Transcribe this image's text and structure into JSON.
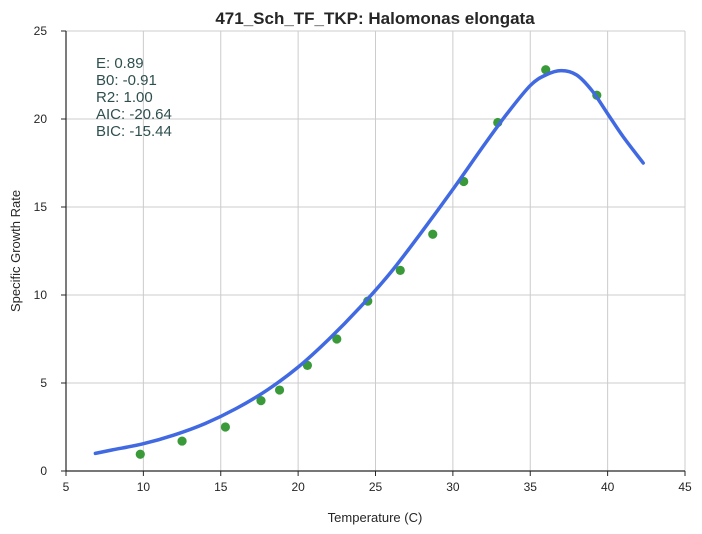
{
  "chart_data": {
    "type": "scatter",
    "title": "471_Sch_TF_TKP: Halomonas elongata",
    "xlabel": "Temperature (C)",
    "ylabel": "Specific Growth Rate",
    "xlim": [
      5,
      45
    ],
    "ylim": [
      0,
      25
    ],
    "xticks": [
      "5",
      "10",
      "15",
      "20",
      "25",
      "30",
      "35",
      "40",
      "45"
    ],
    "yticks": [
      "0",
      "5",
      "10",
      "15",
      "20",
      "25"
    ],
    "grid": true,
    "stats": [
      "E:  0.89",
      "B0:  -0.91",
      "R2:  1.00",
      "AIC: -20.64",
      "BIC: -15.44"
    ],
    "series": [
      {
        "kind": "points",
        "color": "#3a9a3a",
        "x": [
          9.8,
          12.5,
          15.3,
          17.6,
          18.8,
          20.6,
          22.5,
          24.5,
          26.6,
          28.7,
          30.7,
          32.9,
          36.0,
          39.3
        ],
        "y": [
          0.95,
          1.7,
          2.5,
          4.0,
          4.6,
          6.0,
          7.5,
          9.65,
          11.4,
          13.45,
          16.45,
          19.8,
          22.8,
          21.35
        ]
      },
      {
        "kind": "fitted-curve",
        "color": "#4169e1",
        "x": [
          6.9,
          8,
          10,
          12,
          14,
          16,
          18,
          20,
          22,
          24,
          26,
          28,
          30,
          32,
          33.5,
          35,
          36,
          37,
          38,
          39,
          40,
          41,
          42.3
        ],
        "y": [
          1.0,
          1.2,
          1.55,
          2.05,
          2.7,
          3.55,
          4.6,
          5.9,
          7.5,
          9.3,
          11.3,
          13.6,
          16.0,
          18.5,
          20.3,
          21.9,
          22.5,
          22.75,
          22.5,
          21.6,
          20.3,
          19.0,
          17.5
        ]
      }
    ]
  }
}
